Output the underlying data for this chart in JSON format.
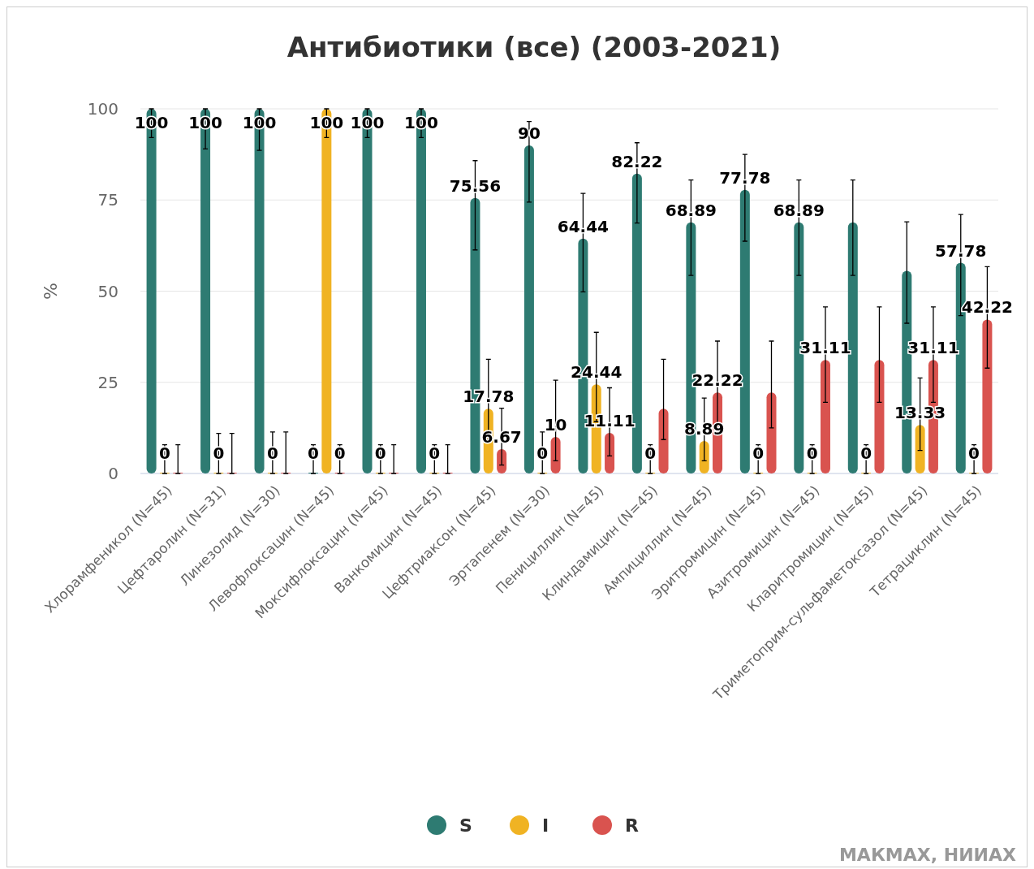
{
  "chart_data": {
    "type": "bar",
    "title": "Антибиотики (все) (2003-2021)",
    "ylabel": "%",
    "categories": [
      "Хлорамфеникол (N=45)",
      "Цефтаролин (N=31)",
      "Линезолид (N=30)",
      "Левофлоксацин (N=45)",
      "Моксифлоксацин (N=45)",
      "Ванкомицин (N=45)",
      "Цефтриаксон (N=45)",
      "Эртапенем (N=30)",
      "Пенициллин (N=45)",
      "Клиндамицин (N=45)",
      "Ампициллин (N=45)",
      "Эритромицин (N=45)",
      "Азитромицин (N=45)",
      "Кларитромицин (N=45)",
      "Триметоприм-сульфаметоксазол (N=45)",
      "Тетрациклин (N=45)"
    ],
    "series": [
      {
        "name": "S",
        "color": "#2e7b72",
        "values": [
          100,
          100,
          100,
          0,
          100,
          100,
          75.56,
          90,
          64.44,
          82.22,
          68.89,
          77.78,
          68.89,
          68.89,
          55.56,
          57.78
        ],
        "value_labels": [
          "100",
          "100",
          "100",
          "0",
          "100",
          "100",
          "75.56",
          "90",
          "64.44",
          "82.22",
          "68.89",
          "77.78",
          "68.89",
          null,
          null,
          "57.78"
        ],
        "errors": [
          [
            92.1,
            100
          ],
          [
            89,
            100
          ],
          [
            88.6,
            100
          ],
          [
            0,
            7.9
          ],
          [
            92.1,
            100
          ],
          [
            92.1,
            100
          ],
          [
            61.3,
            85.8
          ],
          [
            74.4,
            96.5
          ],
          [
            49.8,
            76.8
          ],
          [
            68.7,
            90.7
          ],
          [
            54.3,
            80.5
          ],
          [
            63.7,
            87.5
          ],
          [
            54.3,
            80.5
          ],
          [
            54.3,
            80.5
          ],
          [
            41.2,
            69
          ],
          [
            43.3,
            71
          ]
        ]
      },
      {
        "name": "I",
        "color": "#f0b323",
        "values": [
          0,
          0,
          0,
          100,
          0,
          0,
          17.78,
          0,
          24.44,
          0,
          8.89,
          0,
          0,
          0,
          13.33,
          0
        ],
        "value_labels": [
          "0",
          "0",
          "0",
          "100",
          "0",
          "0",
          "17.78",
          "0",
          "24.44",
          "0",
          "8.89",
          "0",
          "0",
          "0",
          "13.33",
          "0"
        ],
        "errors": [
          [
            0,
            7.9
          ],
          [
            0,
            11
          ],
          [
            0,
            11.4
          ],
          [
            92.1,
            100
          ],
          [
            0,
            7.9
          ],
          [
            0,
            7.9
          ],
          [
            9.3,
            31.3
          ],
          [
            0,
            11.4
          ],
          [
            14.2,
            38.7
          ],
          [
            0,
            7.9
          ],
          [
            3.5,
            20.7
          ],
          [
            0,
            7.9
          ],
          [
            0,
            7.9
          ],
          [
            0,
            7.9
          ],
          [
            6.3,
            26.2
          ],
          [
            0,
            7.9
          ]
        ]
      },
      {
        "name": "R",
        "color": "#d9534f",
        "values": [
          0,
          0,
          0,
          0,
          0,
          0,
          6.67,
          10,
          11.11,
          17.78,
          22.22,
          22.22,
          31.11,
          31.11,
          31.11,
          42.22
        ],
        "value_labels": [
          null,
          null,
          null,
          "0",
          null,
          null,
          "6.67",
          "10",
          "11.11",
          null,
          "22.22",
          null,
          "31.11",
          null,
          "31.11",
          "42.22"
        ],
        "errors": [
          [
            0,
            7.9
          ],
          [
            0,
            11
          ],
          [
            0,
            11.4
          ],
          [
            0,
            7.9
          ],
          [
            0,
            7.9
          ],
          [
            0,
            7.9
          ],
          [
            2.3,
            17.9
          ],
          [
            3.5,
            25.6
          ],
          [
            4.8,
            23.5
          ],
          [
            9.3,
            31.3
          ],
          [
            12.5,
            36.3
          ],
          [
            12.5,
            36.3
          ],
          [
            19.5,
            45.7
          ],
          [
            19.5,
            45.7
          ],
          [
            19.5,
            45.7
          ],
          [
            28.9,
            56.7
          ]
        ]
      }
    ],
    "ylim": [
      0,
      100
    ],
    "yticks": [
      0,
      25,
      50,
      75,
      100
    ],
    "grid": "y",
    "legend": "bottom",
    "annotations": [
      "МАКМАХ, НИИАХ"
    ]
  }
}
